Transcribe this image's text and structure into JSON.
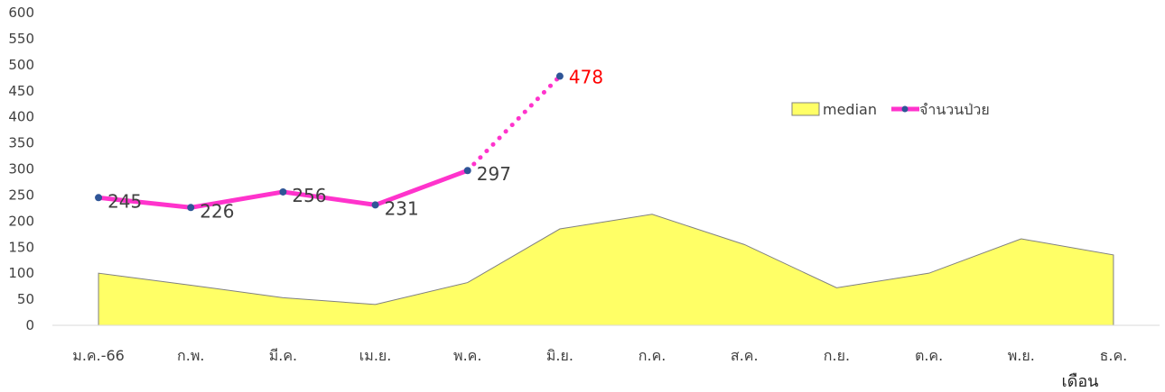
{
  "chart_data": {
    "type": "line",
    "categories": [
      "ม.ค.-66",
      "ก.พ.",
      "มี.ค.",
      "เม.ย.",
      "พ.ค.",
      "มิ.ย.",
      "ก.ค.",
      "ส.ค.",
      "ก.ย.",
      "ต.ค.",
      "พ.ย.",
      "ธ.ค."
    ],
    "xlabel": "เดือน",
    "ylabel": "",
    "ylim": [
      0,
      600
    ],
    "yticks": [
      0,
      50,
      100,
      150,
      200,
      250,
      300,
      350,
      400,
      450,
      500,
      550,
      600
    ],
    "grid": false,
    "legend_position": "right",
    "series": [
      {
        "name": "median",
        "type": "area",
        "color": "#FFFF66",
        "values": [
          100,
          77,
          53,
          40,
          82,
          185,
          213,
          155,
          72,
          100,
          166,
          135
        ]
      },
      {
        "name": "จำนวนป่วย",
        "type": "line",
        "color": "#FF33CC",
        "marker_color": "#2F5597",
        "values": [
          245,
          226,
          256,
          231,
          297,
          478,
          null,
          null,
          null,
          null,
          null,
          null
        ],
        "data_labels": [
          "245",
          "226",
          "256",
          "231",
          "297",
          "478"
        ],
        "dotted_from_index": 4,
        "highlight_label_index": 5,
        "highlight_label_color": "#FF0000"
      }
    ]
  }
}
